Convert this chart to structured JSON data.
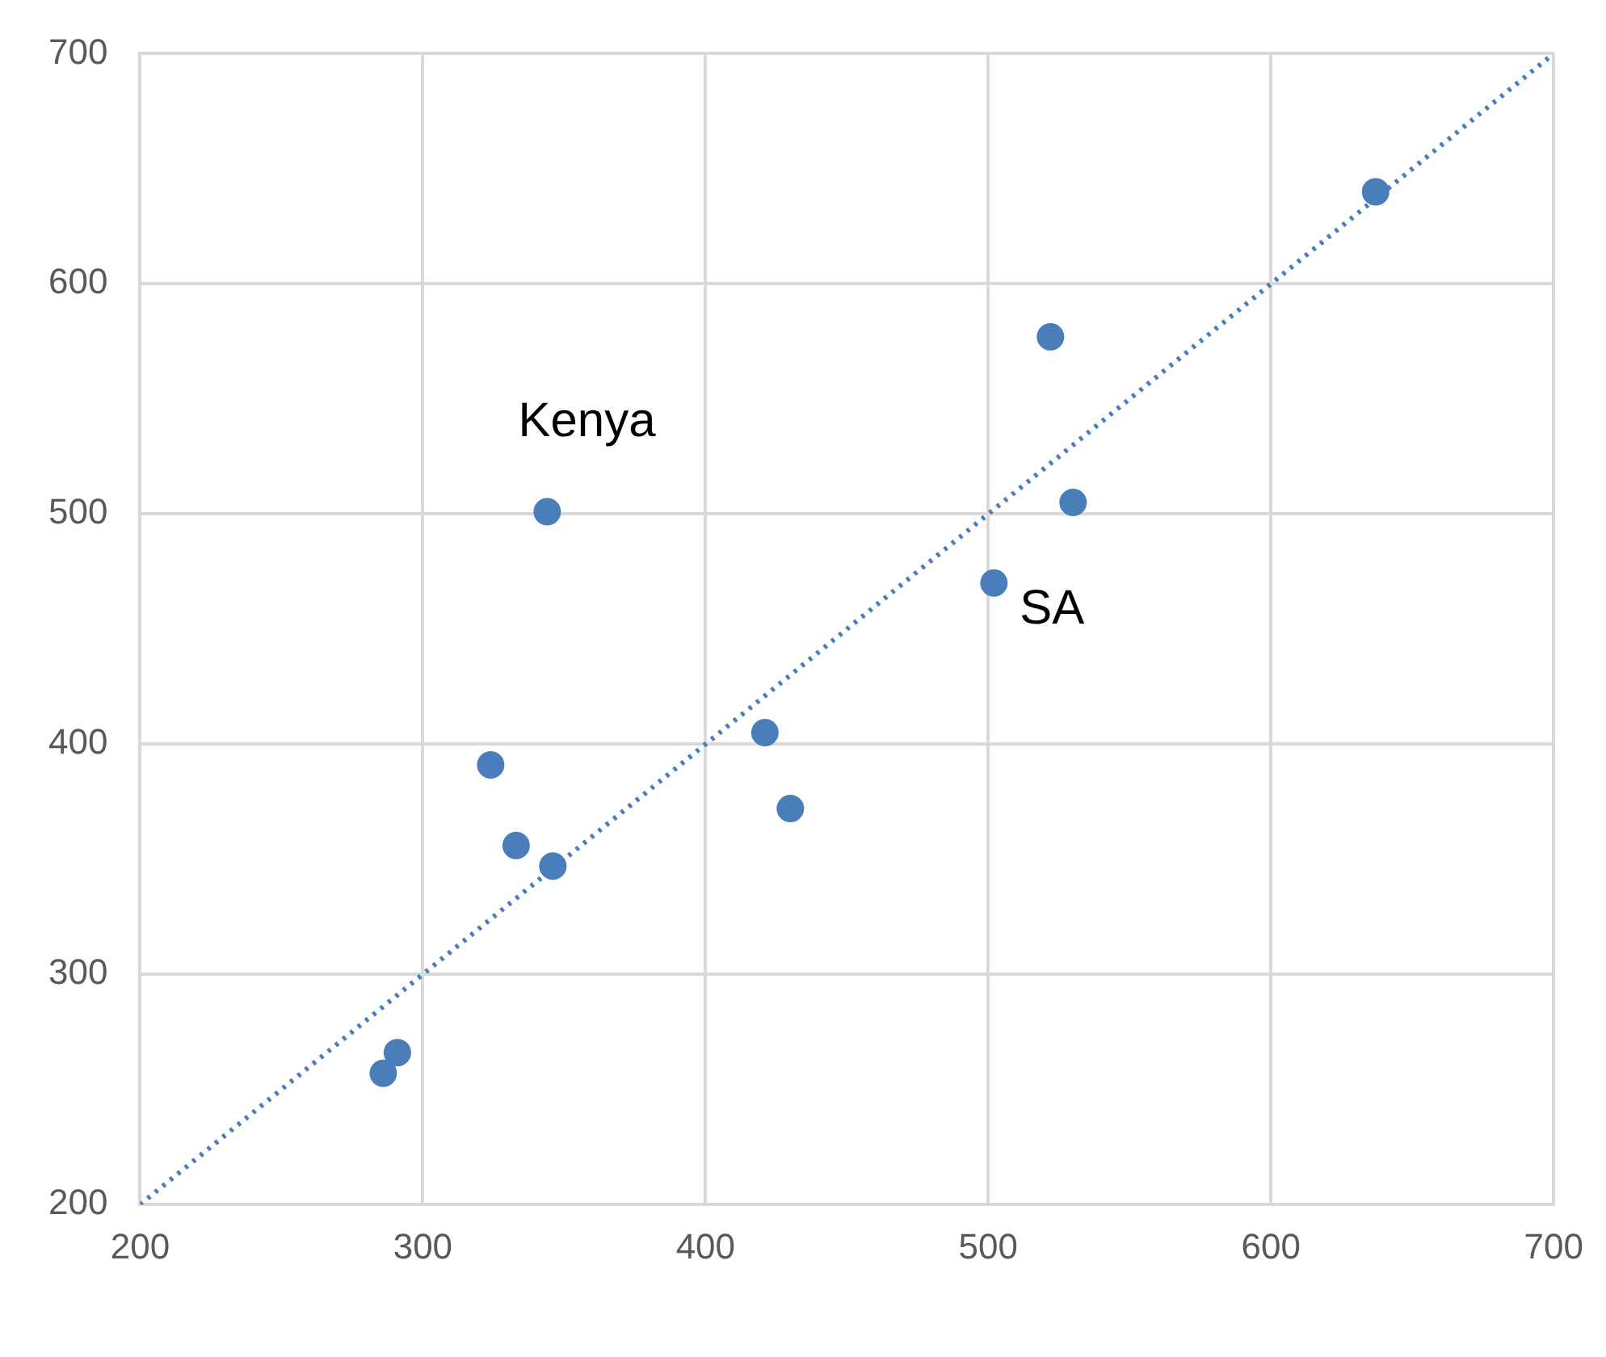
{
  "chart_data": {
    "type": "scatter",
    "xlim": [
      200,
      700
    ],
    "xticks": [
      200,
      300,
      400,
      500,
      600,
      700
    ],
    "ylim": [
      200,
      700
    ],
    "yticks": [
      200,
      300,
      400,
      500,
      600,
      700
    ],
    "grid": true,
    "legend": false,
    "marker": "circle",
    "series": [
      {
        "color": "#4a7ebb",
        "x": [
          637,
          522,
          530,
          502,
          344,
          421,
          430,
          324,
          333,
          346,
          291,
          286
        ],
        "values": [
          640,
          577,
          505,
          470,
          501,
          405,
          372,
          391,
          356,
          347,
          266,
          257
        ]
      },
      {
        "type": "line",
        "color": "#4a7ebb",
        "line_style": "dotted",
        "marker": "none",
        "x": [
          200,
          700
        ],
        "values": [
          200,
          700
        ]
      }
    ],
    "annotations": [
      {
        "text": "Kenya",
        "x": 344,
        "y": 501
      },
      {
        "text": "SA",
        "x": 502,
        "y": 470
      }
    ]
  }
}
